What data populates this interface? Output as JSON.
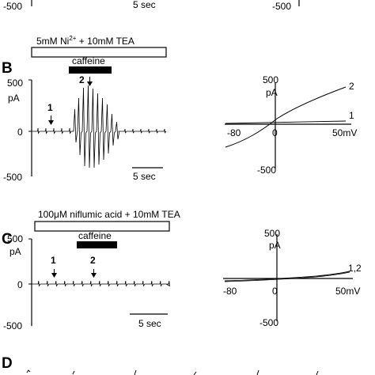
{
  "top_strip": {
    "left_tick": "-500",
    "scale": "5 sec",
    "right_tick": "-500"
  },
  "panel_b": {
    "letter": "B",
    "treatment": "5mM Ni",
    "treatment_sup": "2+",
    "treatment_rest": " + 10mM TEA",
    "drug": "caffeine",
    "y_top": "500",
    "y_unit": "pA",
    "y_zero": "0",
    "y_bottom": "-500",
    "marker1": "1",
    "marker2": "2",
    "scale": "5 sec",
    "iv": {
      "y_top": "500",
      "y_unit": "pA",
      "y_bottom": "-500",
      "x_left": "-80",
      "x_zero": "0",
      "x_right": "50mV",
      "curve1_label": "1",
      "curve2_label": "2"
    }
  },
  "panel_c": {
    "letter": "C",
    "treatment": "100μM niflumic acid + 10mM TEA",
    "drug": "caffeine",
    "y_top": "500",
    "y_unit": "pA",
    "y_zero": "0",
    "y_bottom": "-500",
    "marker1": "1",
    "marker2": "2",
    "scale": "5 sec",
    "iv": {
      "y_top": "500",
      "y_unit": "pA",
      "y_bottom": "-500",
      "x_left": "-80",
      "x_zero": "0",
      "x_right": "50mV",
      "curve_label": "1,2"
    }
  },
  "panel_d": {
    "letter": "D"
  },
  "colors": {
    "ink": "#000000",
    "background": "#ffffff"
  }
}
